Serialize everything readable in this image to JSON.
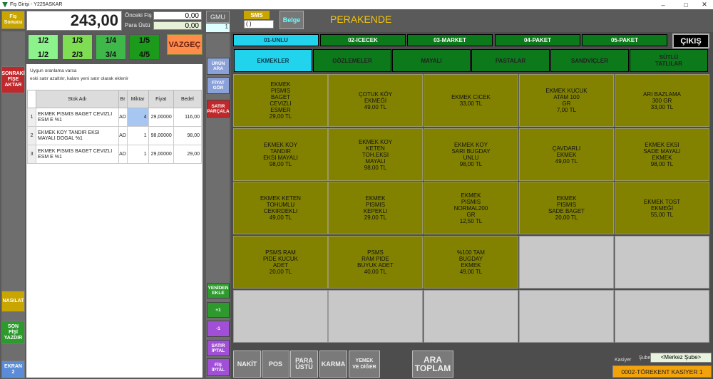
{
  "window": {
    "title": "Fiş Girişi - Y225ASKAR",
    "min": "–",
    "max": "□",
    "close": "✕"
  },
  "left": {
    "fis_sonucu": "Fiş\nSonucu",
    "sonraki": "SONRAKİ\nFİŞE\nAKTAR",
    "nasilat": "NASILAT",
    "son_fis": "SON\nFİŞİ\nYAZDIR",
    "ekran": "EKRAN\n2"
  },
  "totals": {
    "amount": "243,00",
    "onceki_label": "Önceki Fiş",
    "onceki_value": "0,00",
    "para_label": "Para Üstü",
    "para_value": "0,00"
  },
  "fractions": [
    {
      "top": "1/2",
      "bot": "1/2",
      "color": "#8cf28c"
    },
    {
      "top": "1/3",
      "bot": "2/3",
      "color": "#7edd52"
    },
    {
      "top": "1/4",
      "bot": "3/4",
      "color": "#3fb84a"
    },
    {
      "top": "1/5",
      "bot": "4/5",
      "color": "#1c9a1c"
    }
  ],
  "vazgec": "VAZGEÇ",
  "info": {
    "line1": "Uygun oranlama varsa",
    "line2": "eski satır azaltılır, kalanı yeni satır olarak eklenir"
  },
  "table": {
    "headers": [
      "Stok Adı",
      "Br",
      "Miktar",
      "Fiyat",
      "Bedel"
    ],
    "rows": [
      {
        "no": "1",
        "name": "EKMEK PISMIS BAGET CEVIZLI ESM E %1",
        "br": "AD",
        "qty": "4",
        "price": "29,00000",
        "total": "116,00"
      },
      {
        "no": "2",
        "name": "EKMEK KOY TANDIR EKSI MAYALI DOGAL %1",
        "br": "AD",
        "qty": "1",
        "price": "98,00000",
        "total": "98,00"
      },
      {
        "no": "3",
        "name": "EKMEK PISMIS BAGET CEVIZLI ESM E %1",
        "br": "AD",
        "qty": "1",
        "price": "29,00000",
        "total": "29,00"
      }
    ]
  },
  "mid": {
    "gmu": "GMU",
    "gmu_val": "1",
    "urun_ara": "ÜRÜN\nARA",
    "fiyat_gor": "FİYAT\nGÖR",
    "satir_parcala": "SATIR\nPARÇALA",
    "yeniden_ekle": "YENİDEN\nEKLE",
    "plus1": "+1",
    "minus1": "-1",
    "satir_iptal": "SATIR\nİPTAL",
    "fis_iptal": "FİŞ\nİPTAL"
  },
  "header": {
    "sms": "SMS",
    "sms_input": "( )",
    "belge": "Belge",
    "mode": "PERAKENDE",
    "cikis": "ÇIKIŞ"
  },
  "categories": [
    "01-UNLU",
    "02-ICECEK",
    "03-MARKET",
    "04-PAKET",
    "05-PAKET"
  ],
  "subcategories": [
    "EKMEKLER",
    "GÖZLEMELER",
    "MAYALI",
    "PASTALAR",
    "SANDVİÇLER",
    "SÜTLÜ\nTATLILAR"
  ],
  "products": [
    "EKMEK\nPISMIS\nBAGET\nCEVIZLI\nESMER\n29,00 TL",
    "ÇOTUK KÖY\nEKMEĞİ\n49,00 TL",
    "EKMEK CICEK\n33,00 TL",
    "EKMEK KUCUK\nATAM 100\nGR\n7,00 TL",
    "ARI BAZLAMA\n300 GR\n33,00 TL",
    "EKMEK KOY\nTANDIR\nEKSI MAYALI\n98,00 TL",
    "EKMEK KOY\nKETEN\nTOH.EKSI\nMAYALI\n98,00 TL",
    "EKMEK KOY\nSARI BUGDAY\nUNLU\n98,00 TL",
    "ÇAVDARLI\nEKMEK\n49,00 TL",
    "EKMEK EKSI\nSADE MAYALI\nEKMEK\n98,00 TL",
    "EKMEK KETEN\nTOHUMLU\nCEKIRDEKLI\n49,00 TL",
    "EKMEK\nPISMIS\nKEPEKLI\n29,00 TL",
    "EKMEK\nPISMIS\nNORMAL200\nGR\n12,50 TL",
    "EKMEK\nPISMIS\nSADE BAGET\n20,00 TL",
    "EKMEK TOST\nEKMEĞİ\n55,00 TL",
    "PSMS RAM\nPIDE KUCUK\nADET\n20,00 TL",
    "PSMS\nRAM PIDE\nBUYUK ADET\n40,00 TL",
    "%100 TAM\nBUGDAY\nEKMEK\n49,00 TL",
    "",
    "",
    "",
    "",
    "",
    "",
    ""
  ],
  "bottom": {
    "nakit": "NAKİT",
    "pos": "POS",
    "para_ustu": "PARA\nÜSTÜ",
    "karma": "KARMA",
    "yemek": "YEMEK\nVE DİĞER",
    "ara_toplam": "ARA\nTOPLAM",
    "kasiyer_label": "Kasiyer",
    "sube_label": "Şube",
    "sube_value": "<Merkez Şube>",
    "kasiyer_value": "0002-TÖREKENT KASİYER 1"
  },
  "colors": {
    "tile": "#828200",
    "category": "#0c7a1b",
    "active": "#22d3ee"
  }
}
